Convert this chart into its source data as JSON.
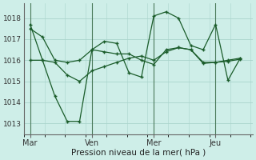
{
  "bg_color": "#ceeee8",
  "grid_color": "#aad4cc",
  "line_color": "#1a5c2a",
  "vline_color": "#4a7a5a",
  "xlabel": "Pression niveau de la mer( hPa )",
  "ylim": [
    1012.5,
    1018.7
  ],
  "yticks": [
    1013,
    1014,
    1015,
    1016,
    1017,
    1018
  ],
  "xtick_labels": [
    "Mar",
    "Ven",
    "Mer",
    "Jeu"
  ],
  "xtick_positions": [
    0,
    30,
    60,
    90
  ],
  "vline_positions": [
    0,
    30,
    60,
    90
  ],
  "xlim": [
    -3,
    108
  ],
  "series1_x": [
    0,
    6,
    12,
    18,
    24,
    30,
    36,
    42,
    48,
    54,
    60,
    66,
    72,
    78,
    84,
    90,
    96,
    102
  ],
  "series1_y": [
    1017.5,
    1017.1,
    1016.0,
    1015.9,
    1016.0,
    1016.5,
    1016.4,
    1016.3,
    1016.3,
    1016.0,
    1015.8,
    1016.5,
    1016.6,
    1016.5,
    1015.9,
    1015.9,
    1016.0,
    1016.1
  ],
  "series2_x": [
    0,
    6,
    12,
    18,
    24,
    30,
    36,
    42,
    48,
    54,
    60,
    66,
    72,
    78,
    84,
    90,
    96,
    102
  ],
  "series2_y": [
    1017.7,
    1016.0,
    1014.3,
    1013.1,
    1013.1,
    1016.5,
    1016.9,
    1016.8,
    1015.4,
    1015.2,
    1018.1,
    1018.3,
    1018.0,
    1016.7,
    1016.5,
    1017.7,
    1015.05,
    1016.1
  ],
  "series3_x": [
    0,
    6,
    12,
    18,
    24,
    30,
    36,
    42,
    48,
    54,
    60,
    66,
    72,
    78,
    84,
    90,
    96,
    102
  ],
  "series3_y": [
    1016.0,
    1016.0,
    1015.9,
    1015.3,
    1015.0,
    1015.5,
    1015.7,
    1015.9,
    1016.1,
    1016.2,
    1016.0,
    1016.4,
    1016.6,
    1016.5,
    1015.85,
    1015.9,
    1015.95,
    1016.05
  ]
}
